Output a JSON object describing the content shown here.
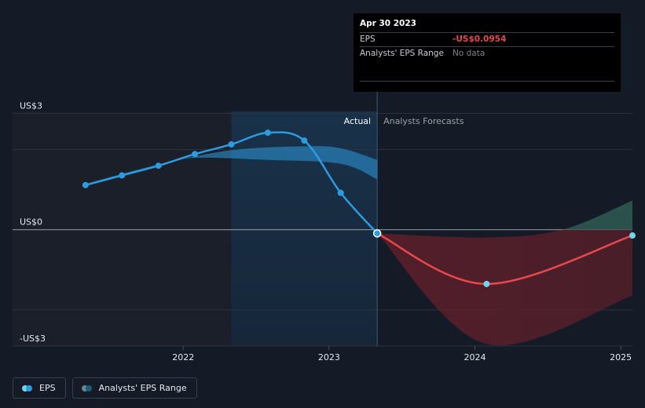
{
  "chart_data": {
    "type": "line",
    "y_ticks": [
      {
        "value": 3,
        "label": "US$3"
      },
      {
        "value": 0,
        "label": "US$0"
      },
      {
        "value": -3,
        "label": "-US$3"
      }
    ],
    "x_ticks": [
      {
        "value": 2022,
        "label": "2022"
      },
      {
        "value": 2023,
        "label": "2023"
      },
      {
        "value": 2024,
        "label": "2024"
      },
      {
        "value": 2025,
        "label": "2025"
      }
    ],
    "xlim": [
      2020.83,
      2025.08
    ],
    "ylim": [
      -3.0,
      3.05
    ],
    "divider_x": 2023.33,
    "region_labels": {
      "actual": "Actual",
      "forecast": "Analysts Forecasts"
    },
    "series": [
      {
        "name": "EPS",
        "color": "#2d9be0",
        "points": [
          {
            "x": 2021.33,
            "y": 1.15
          },
          {
            "x": 2021.58,
            "y": 1.4
          },
          {
            "x": 2021.83,
            "y": 1.65
          },
          {
            "x": 2022.08,
            "y": 1.95
          },
          {
            "x": 2022.33,
            "y": 2.2
          },
          {
            "x": 2022.58,
            "y": 2.5
          },
          {
            "x": 2022.83,
            "y": 2.3
          },
          {
            "x": 2023.08,
            "y": 0.95
          },
          {
            "x": 2023.33,
            "y": -0.0954
          }
        ]
      },
      {
        "name": "EPS forecast",
        "color": "#e8474c",
        "points": [
          {
            "x": 2023.33,
            "y": -0.0954
          },
          {
            "x": 2024.08,
            "y": -1.4
          },
          {
            "x": 2025.08,
            "y": -0.15
          }
        ]
      }
    ],
    "range_band": {
      "name": "Analysts' EPS Range",
      "color": "#2d9be0",
      "upper": [
        {
          "x": 2021.33,
          "y": 1.18
        },
        {
          "x": 2021.83,
          "y": 1.68
        },
        {
          "x": 2022.33,
          "y": 2.05
        },
        {
          "x": 2022.83,
          "y": 2.15
        },
        {
          "x": 2023.08,
          "y": 2.1
        },
        {
          "x": 2023.33,
          "y": 1.8
        }
      ],
      "lower": [
        {
          "x": 2021.33,
          "y": 1.15
        },
        {
          "x": 2021.83,
          "y": 1.65
        },
        {
          "x": 2022.08,
          "y": 1.85
        },
        {
          "x": 2022.58,
          "y": 1.8
        },
        {
          "x": 2023.08,
          "y": 1.7
        },
        {
          "x": 2023.33,
          "y": 1.3
        }
      ]
    },
    "forecast_band": {
      "upper": [
        {
          "x": 2023.33,
          "y": -0.0954
        },
        {
          "x": 2024.08,
          "y": -0.2
        },
        {
          "x": 2024.6,
          "y": 0.0
        },
        {
          "x": 2025.08,
          "y": 0.75
        }
      ],
      "lower": [
        {
          "x": 2023.33,
          "y": -0.0954
        },
        {
          "x": 2024.08,
          "y": -2.95
        },
        {
          "x": 2025.08,
          "y": -1.7
        }
      ]
    },
    "tooltip": {
      "date": "Apr 30 2023",
      "eps_label": "EPS",
      "eps_value": "-US$0.0954",
      "range_label": "Analysts' EPS Range",
      "range_value": "No data"
    },
    "legend": [
      {
        "label": "EPS",
        "color_light": "#6fd8e8",
        "color_dark": "#2d9be0"
      },
      {
        "label": "Analysts' EPS Range",
        "color_light": "#5f8a8f",
        "color_dark": "#1f5b78"
      }
    ]
  }
}
